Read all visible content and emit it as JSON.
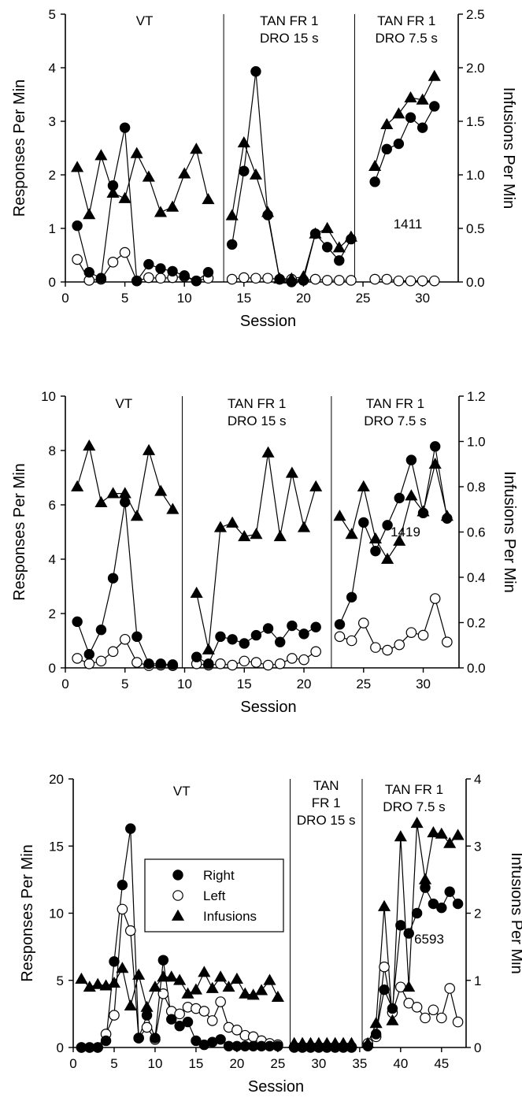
{
  "chart_data": [
    {
      "type": "line",
      "subject_label": "1411",
      "xlabel": "Session",
      "ylabel": "Responses Per Min",
      "y2label": "Infusions Per Min",
      "xlim": [
        0,
        33
      ],
      "xticks": [
        "0",
        "5",
        "10",
        "15",
        "20",
        "25",
        "30"
      ],
      "ylim": [
        0,
        5
      ],
      "yticks": [
        "0",
        "1",
        "2",
        "3",
        "4",
        "5"
      ],
      "y2lim": [
        0,
        2.5
      ],
      "y2ticks": [
        "0.0",
        "0.5",
        "1.0",
        "1.5",
        "2.0",
        "2.5"
      ],
      "phase_lines": [
        13.3,
        24.3
      ],
      "phases": [
        {
          "lines": [
            "VT"
          ]
        },
        {
          "lines": [
            "TAN FR 1",
            "DRO 15 s"
          ]
        },
        {
          "lines": [
            "TAN FR 1",
            "DRO 7.5 s"
          ]
        }
      ],
      "series": [
        {
          "name": "Right",
          "axis": "left",
          "segments": [
            {
              "x": [
                1,
                2,
                3,
                4,
                5,
                6,
                7,
                8,
                9,
                10,
                11,
                12
              ],
              "y": [
                1.05,
                0.18,
                0.07,
                1.8,
                2.88,
                0.02,
                0.33,
                0.25,
                0.2,
                0.12,
                0.02,
                0.18
              ]
            },
            {
              "x": [
                14,
                15,
                16,
                17,
                18,
                19,
                20,
                21,
                22,
                23,
                24
              ],
              "y": [
                0.7,
                2.07,
                3.93,
                1.25,
                0.05,
                0.0,
                0.03,
                0.9,
                0.65,
                0.4,
                0.8
              ]
            },
            {
              "x": [
                26,
                27,
                28,
                29,
                30,
                31
              ],
              "y": [
                1.87,
                2.48,
                2.58,
                3.07,
                2.88,
                3.28
              ]
            }
          ]
        },
        {
          "name": "Left",
          "axis": "left",
          "segments": [
            {
              "x": [
                1,
                2,
                3,
                4,
                5,
                6,
                7,
                8,
                9,
                10,
                11,
                12
              ],
              "y": [
                0.42,
                0.03,
                0.05,
                0.37,
                0.55,
                0.02,
                0.08,
                0.07,
                0.08,
                0.1,
                0.02,
                0.07
              ]
            },
            {
              "x": [
                14,
                15,
                16,
                17,
                18,
                19,
                20,
                21,
                22,
                23,
                24
              ],
              "y": [
                0.05,
                0.08,
                0.07,
                0.07,
                0.05,
                0.05,
                0.03,
                0.05,
                0.03,
                0.03,
                0.03
              ]
            },
            {
              "x": [
                26,
                27,
                28,
                29,
                30,
                31
              ],
              "y": [
                0.05,
                0.05,
                0.02,
                0.02,
                0.02,
                0.02
              ]
            }
          ]
        },
        {
          "name": "Infusions",
          "axis": "right",
          "segments": [
            {
              "x": [
                1,
                2,
                3,
                4,
                5,
                6,
                7,
                8,
                9,
                10,
                11,
                12
              ],
              "y": [
                1.07,
                0.63,
                1.18,
                0.83,
                0.78,
                1.2,
                0.98,
                0.65,
                0.7,
                1.01,
                1.24,
                0.77
              ]
            },
            {
              "x": [
                14,
                15,
                16,
                17,
                18,
                19,
                20,
                21,
                22,
                23,
                24
              ],
              "y": [
                0.62,
                1.3,
                1.0,
                0.65,
                0.03,
                0.03,
                0.05,
                0.45,
                0.5,
                0.32,
                0.42
              ]
            },
            {
              "x": [
                26,
                27,
                28,
                29,
                30,
                31
              ],
              "y": [
                1.08,
                1.47,
                1.57,
                1.72,
                1.7,
                1.92
              ]
            }
          ]
        }
      ]
    },
    {
      "type": "line",
      "subject_label": "1419",
      "xlabel": "Session",
      "ylabel": "Responses Per Min",
      "y2label": "Infusions Per Min",
      "xlim": [
        0,
        33
      ],
      "xticks": [
        "0",
        "5",
        "10",
        "15",
        "20",
        "25",
        "30"
      ],
      "ylim": [
        0,
        10
      ],
      "yticks": [
        "0",
        "2",
        "4",
        "6",
        "8",
        "10"
      ],
      "y2lim": [
        0,
        1.2
      ],
      "y2ticks": [
        "0.0",
        "0.2",
        "0.4",
        "0.6",
        "0.8",
        "1.0",
        "1.2"
      ],
      "phase_lines": [
        9.8,
        22.3
      ],
      "phases": [
        {
          "lines": [
            "VT"
          ]
        },
        {
          "lines": [
            "TAN FR 1",
            "DRO 15 s"
          ]
        },
        {
          "lines": [
            "TAN FR 1",
            "DRO 7.5 s"
          ]
        }
      ],
      "series": [
        {
          "name": "Right",
          "axis": "left",
          "segments": [
            {
              "x": [
                1,
                2,
                3,
                4,
                5,
                6,
                7,
                8,
                9
              ],
              "y": [
                1.7,
                0.5,
                1.4,
                3.3,
                6.1,
                1.15,
                0.15,
                0.15,
                0.12
              ]
            },
            {
              "x": [
                11,
                12,
                13,
                14,
                15,
                16,
                17,
                18,
                19,
                20,
                21
              ],
              "y": [
                0.4,
                0.15,
                1.15,
                1.05,
                0.9,
                1.2,
                1.45,
                0.95,
                1.55,
                1.25,
                1.5
              ]
            },
            {
              "x": [
                23,
                24,
                25,
                26,
                27,
                28,
                29,
                30,
                31,
                32
              ],
              "y": [
                1.6,
                2.6,
                5.35,
                4.3,
                5.25,
                6.25,
                7.65,
                5.7,
                8.15,
                5.5
              ]
            }
          ]
        },
        {
          "name": "Left",
          "axis": "left",
          "segments": [
            {
              "x": [
                1,
                2,
                3,
                4,
                5,
                6,
                7,
                8,
                9
              ],
              "y": [
                0.35,
                0.15,
                0.25,
                0.6,
                1.05,
                0.2,
                0.08,
                0.1,
                0.08
              ]
            },
            {
              "x": [
                11,
                12,
                13,
                14,
                15,
                16,
                17,
                18,
                19,
                20,
                21
              ],
              "y": [
                0.15,
                0.1,
                0.15,
                0.1,
                0.25,
                0.2,
                0.1,
                0.15,
                0.35,
                0.3,
                0.6
              ]
            },
            {
              "x": [
                23,
                24,
                25,
                26,
                27,
                28,
                29,
                30,
                31,
                32
              ],
              "y": [
                1.15,
                1.0,
                1.65,
                0.75,
                0.65,
                0.85,
                1.3,
                1.2,
                2.55,
                0.95
              ]
            }
          ]
        },
        {
          "name": "Infusions",
          "axis": "right",
          "segments": [
            {
              "x": [
                1,
                2,
                3,
                4,
                5,
                6,
                7,
                8,
                9
              ],
              "y": [
                0.8,
                0.98,
                0.73,
                0.77,
                0.77,
                0.67,
                0.96,
                0.78,
                0.7
              ]
            },
            {
              "x": [
                11,
                12,
                13,
                14,
                15,
                16,
                17,
                18,
                19,
                20,
                21
              ],
              "y": [
                0.33,
                0.08,
                0.62,
                0.64,
                0.58,
                0.59,
                0.95,
                0.58,
                0.86,
                0.62,
                0.8
              ]
            },
            {
              "x": [
                23,
                24,
                25,
                26,
                27,
                28,
                29,
                30,
                31,
                32
              ],
              "y": [
                0.67,
                0.59,
                0.8,
                0.57,
                0.48,
                0.56,
                0.76,
                0.69,
                0.9,
                0.67
              ]
            }
          ]
        }
      ]
    },
    {
      "type": "line",
      "subject_label": "6593",
      "xlabel": "Session",
      "ylabel": "Responses Per Min",
      "y2label": "Infusions Per Min",
      "xlim": [
        0,
        48
      ],
      "xticks": [
        "0",
        "5",
        "10",
        "15",
        "20",
        "25",
        "30",
        "35",
        "40",
        "45"
      ],
      "ylim": [
        0,
        20
      ],
      "yticks": [
        "0",
        "5",
        "10",
        "15",
        "20"
      ],
      "y2lim": [
        0,
        4
      ],
      "y2ticks": [
        "0",
        "1",
        "2",
        "3",
        "4"
      ],
      "phase_lines": [
        26.5,
        35.3
      ],
      "phases": [
        {
          "lines": [
            "VT"
          ]
        },
        {
          "lines": [
            "TAN",
            "FR 1",
            "DRO 15 s"
          ]
        },
        {
          "lines": [
            "TAN FR 1",
            "DRO 7.5 s"
          ]
        }
      ],
      "legend": {
        "placement": "middle-left",
        "entries": [
          "Right",
          "Left",
          "Infusions"
        ]
      },
      "series": [
        {
          "name": "Right",
          "axis": "left",
          "segments": [
            {
              "x": [
                1,
                2,
                3,
                4,
                5,
                6,
                7,
                8,
                9,
                10,
                11,
                12,
                13,
                14,
                15,
                16,
                17,
                18,
                19,
                20,
                21,
                22,
                23,
                24,
                25
              ],
              "y": [
                0,
                0,
                0,
                0.5,
                6.4,
                12.1,
                16.3,
                0.7,
                2.4,
                0.7,
                6.5,
                2.1,
                1.6,
                1.9,
                0.5,
                0.2,
                0.4,
                0.6,
                0.1,
                0.1,
                0.1,
                0.1,
                0.1,
                0.1,
                0.1
              ]
            },
            {
              "x": [
                27,
                28,
                29,
                30,
                31,
                32,
                33,
                34
              ],
              "y": [
                0.05,
                0.05,
                0.05,
                0.05,
                0.05,
                0.05,
                0.05,
                0.05
              ]
            },
            {
              "x": [
                36,
                37,
                38,
                39,
                40,
                41,
                42,
                43,
                44,
                45,
                46,
                47
              ],
              "y": [
                0.1,
                1.0,
                4.3,
                2.9,
                9.1,
                8.5,
                10.0,
                11.9,
                10.7,
                10.4,
                11.6,
                10.7
              ]
            }
          ]
        },
        {
          "name": "Left",
          "axis": "left",
          "segments": [
            {
              "x": [
                1,
                2,
                3,
                4,
                5,
                6,
                7,
                8,
                9,
                10,
                11,
                12,
                13,
                14,
                15,
                16,
                17,
                18,
                19,
                20,
                21,
                22,
                23,
                24,
                25
              ],
              "y": [
                0,
                0,
                0,
                1.0,
                2.4,
                10.3,
                8.7,
                0.7,
                1.5,
                0.6,
                4.0,
                2.7,
                2.5,
                3.0,
                2.9,
                2.7,
                2.0,
                3.4,
                1.5,
                1.3,
                0.9,
                0.8,
                0.5,
                0.3,
                0.2
              ]
            },
            {
              "x": [
                27,
                28,
                29,
                30,
                31,
                32,
                33,
                34
              ],
              "y": [
                0,
                0,
                0,
                0,
                0,
                0,
                0,
                0
              ]
            },
            {
              "x": [
                36,
                37,
                38,
                39,
                40,
                41,
                42,
                43,
                44,
                45,
                46,
                47
              ],
              "y": [
                0.3,
                0.8,
                6.0,
                2.6,
                4.5,
                3.3,
                3.0,
                2.2,
                2.8,
                2.2,
                4.4,
                1.9
              ]
            }
          ]
        },
        {
          "name": "Infusions",
          "axis": "right",
          "segments": [
            {
              "x": [
                1,
                2,
                3,
                4,
                5,
                6,
                7,
                8,
                9,
                10,
                11,
                12,
                13,
                14,
                15,
                16,
                17,
                18,
                19,
                20,
                21,
                22,
                23,
                24,
                25
              ],
              "y": [
                1.02,
                0.9,
                0.94,
                0.92,
                0.96,
                1.18,
                0.62,
                1.08,
                0.6,
                0.9,
                1.05,
                1.05,
                1.0,
                0.8,
                0.86,
                1.12,
                0.88,
                1.05,
                0.9,
                1.02,
                0.8,
                0.78,
                0.85,
                1.0,
                0.75
              ]
            },
            {
              "x": [
                27,
                28,
                29,
                30,
                31,
                32,
                33,
                34
              ],
              "y": [
                0.06,
                0.06,
                0.06,
                0.06,
                0.06,
                0.06,
                0.06,
                0.06
              ]
            },
            {
              "x": [
                36,
                37,
                38,
                39,
                40,
                41,
                42,
                43,
                44,
                45,
                46,
                47
              ],
              "y": [
                0.06,
                0.36,
                2.1,
                0.4,
                3.14,
                0.9,
                3.34,
                2.5,
                3.2,
                3.18,
                3.04,
                3.16
              ]
            }
          ]
        }
      ]
    }
  ]
}
